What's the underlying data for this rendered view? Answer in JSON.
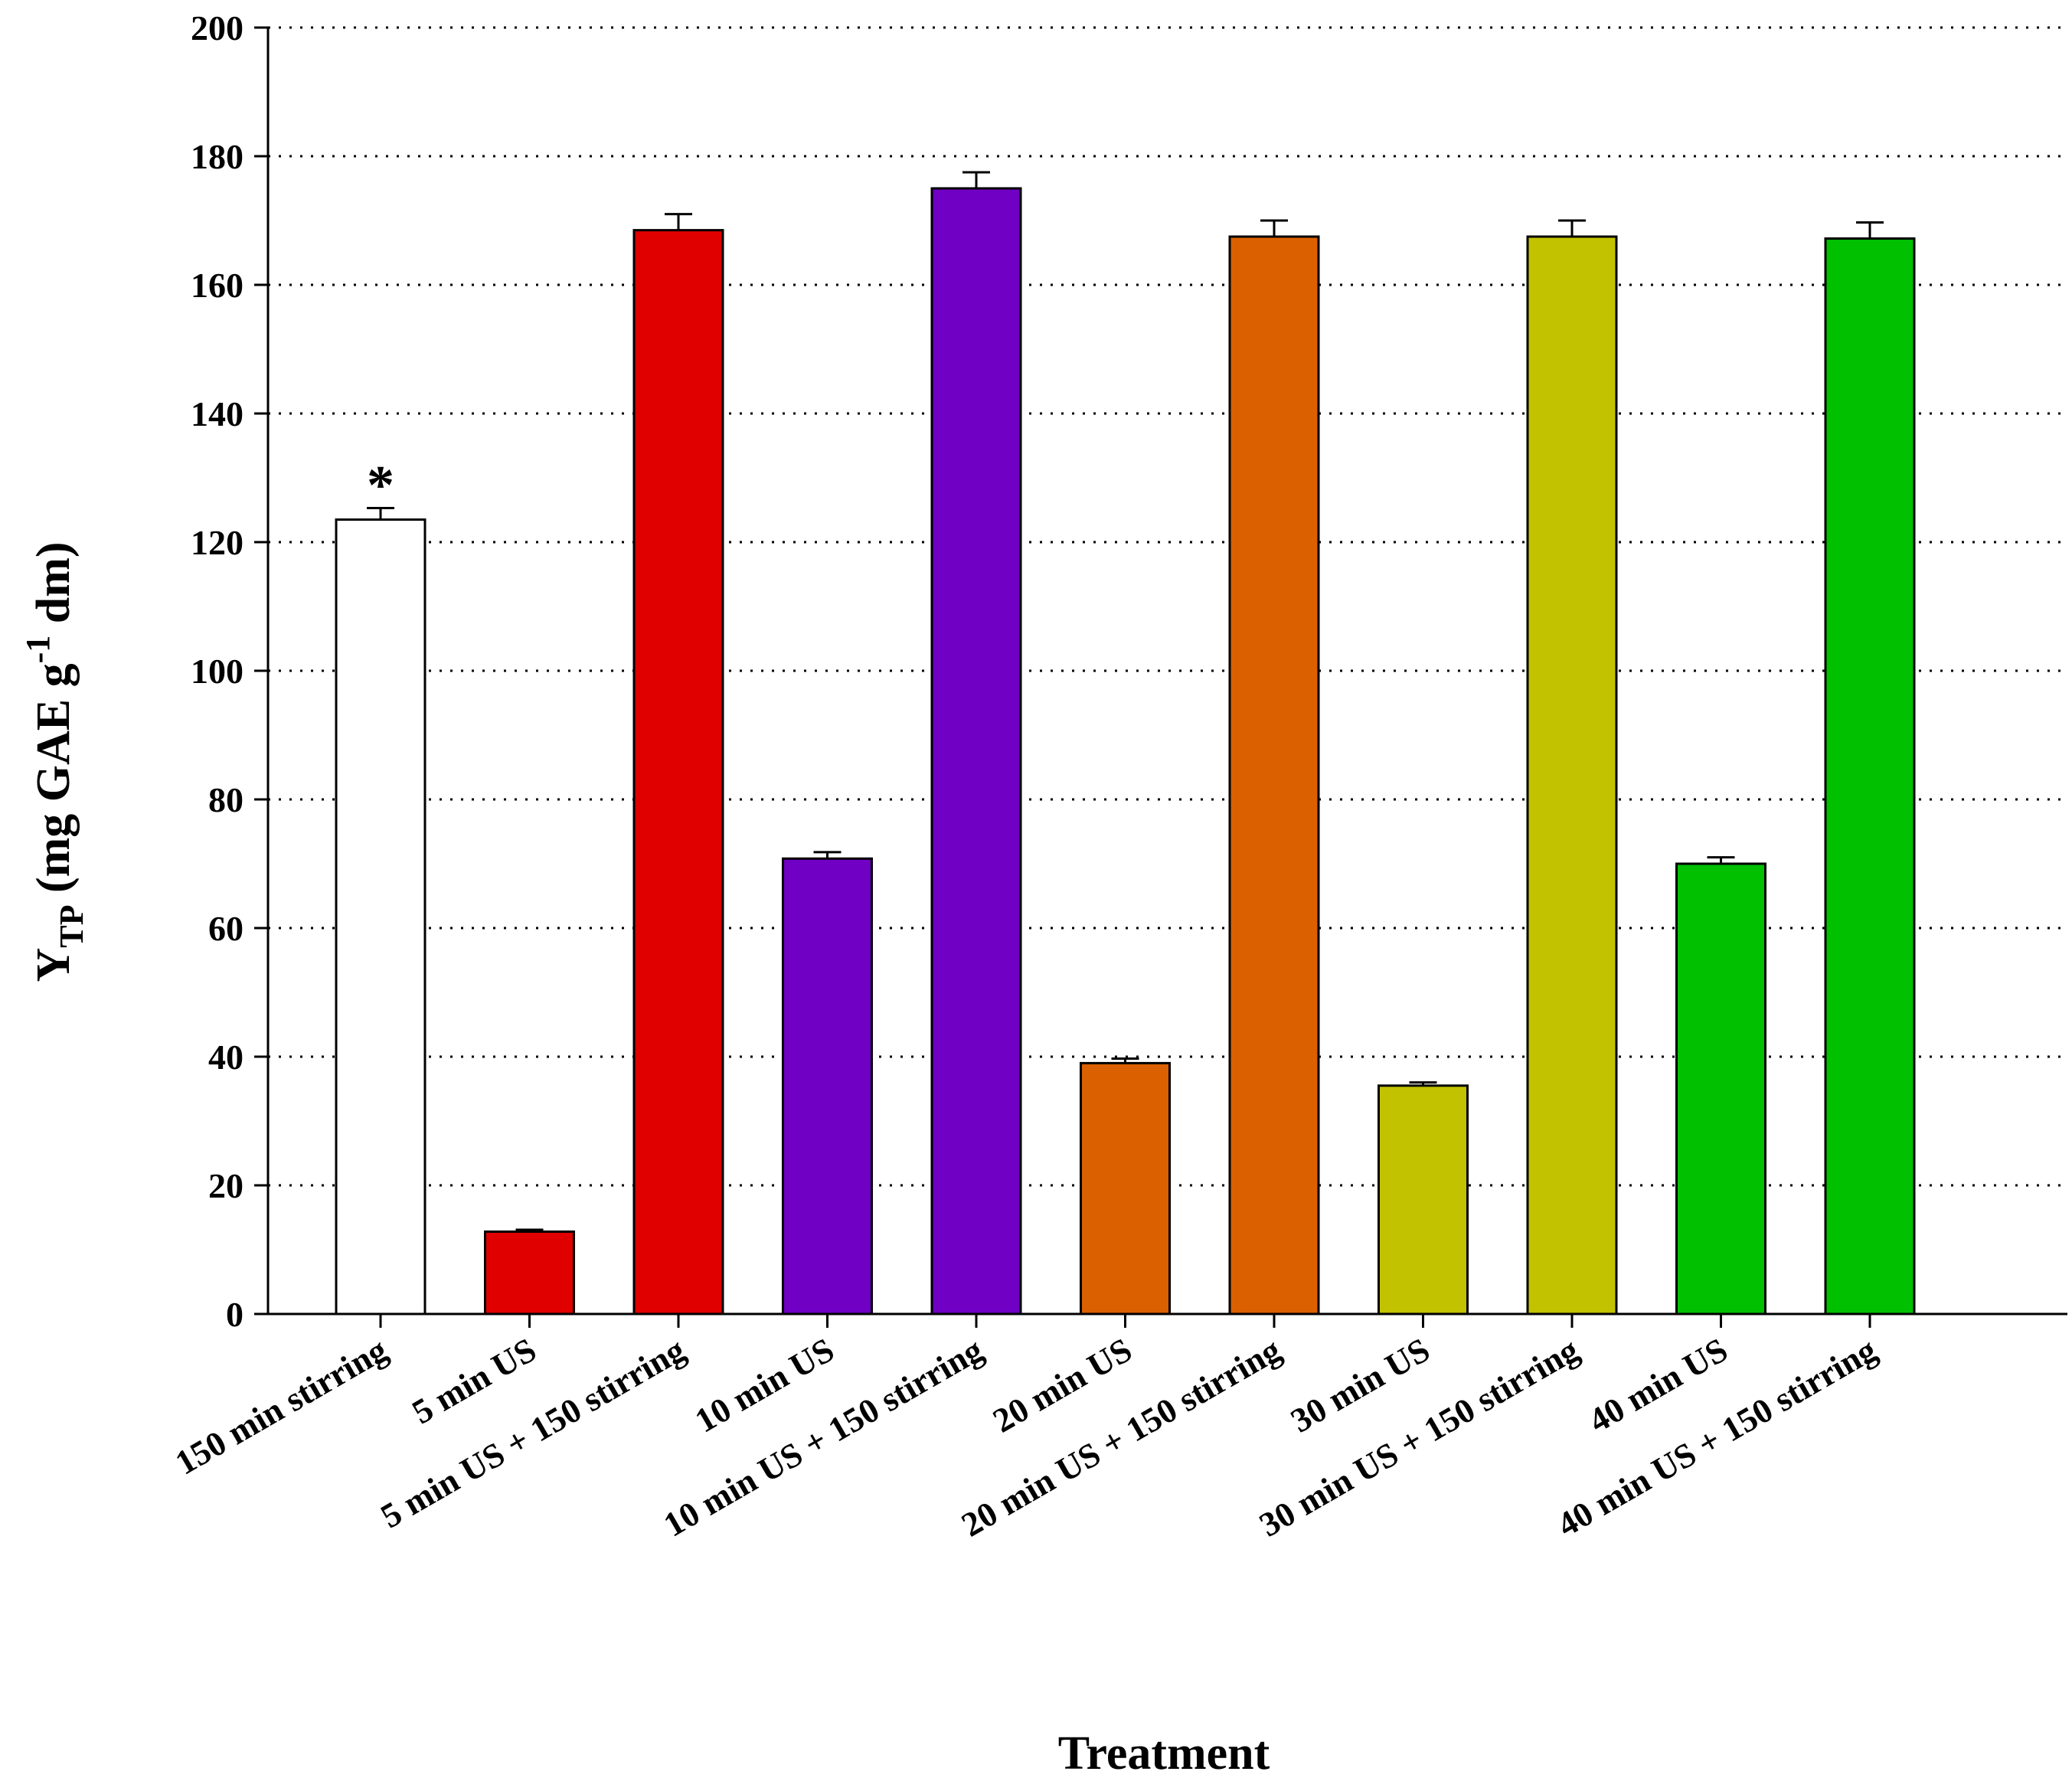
{
  "chart_data": {
    "type": "bar",
    "title": "",
    "xlabel": "Treatment",
    "ylabel": {
      "main": "Y",
      "subscript": "TP",
      "unit_before": " (mg GAE g",
      "superscript": "-1",
      "unit_after": " dm)"
    },
    "ylim": [
      0,
      200
    ],
    "yticks": [
      0,
      20,
      40,
      60,
      80,
      100,
      120,
      140,
      160,
      180,
      200
    ],
    "yticks_text": [
      "0",
      "20",
      "40",
      "60",
      "80",
      "100",
      "120",
      "140",
      "160",
      "180",
      "200"
    ],
    "grid": "horizontal dotted",
    "categories": [
      "150 min stirring",
      "5 min US",
      "5 min US + 150 stirring",
      "10 min US",
      "10 min US + 150 stirring",
      "20 min US",
      "20 min US + 150 stirring",
      "30 min US",
      "30 min US + 150 stirring",
      "40 min US",
      "40 min US + 150 stirring"
    ],
    "values": [
      123.5,
      12.8,
      168.5,
      70.8,
      175.0,
      39.0,
      167.5,
      35.5,
      167.5,
      70.0,
      167.2
    ],
    "errors": [
      1.8,
      0.3,
      2.5,
      1.0,
      2.5,
      0.7,
      2.5,
      0.5,
      2.5,
      1.0,
      2.5
    ],
    "colors": [
      "#ffffff",
      "#e00000",
      "#e00000",
      "#7000c4",
      "#7000c4",
      "#da6000",
      "#da6000",
      "#c2c200",
      "#c2c200",
      "#00c000",
      "#00c000"
    ],
    "annotations": [
      {
        "category_index": 0,
        "text": "*"
      }
    ]
  }
}
